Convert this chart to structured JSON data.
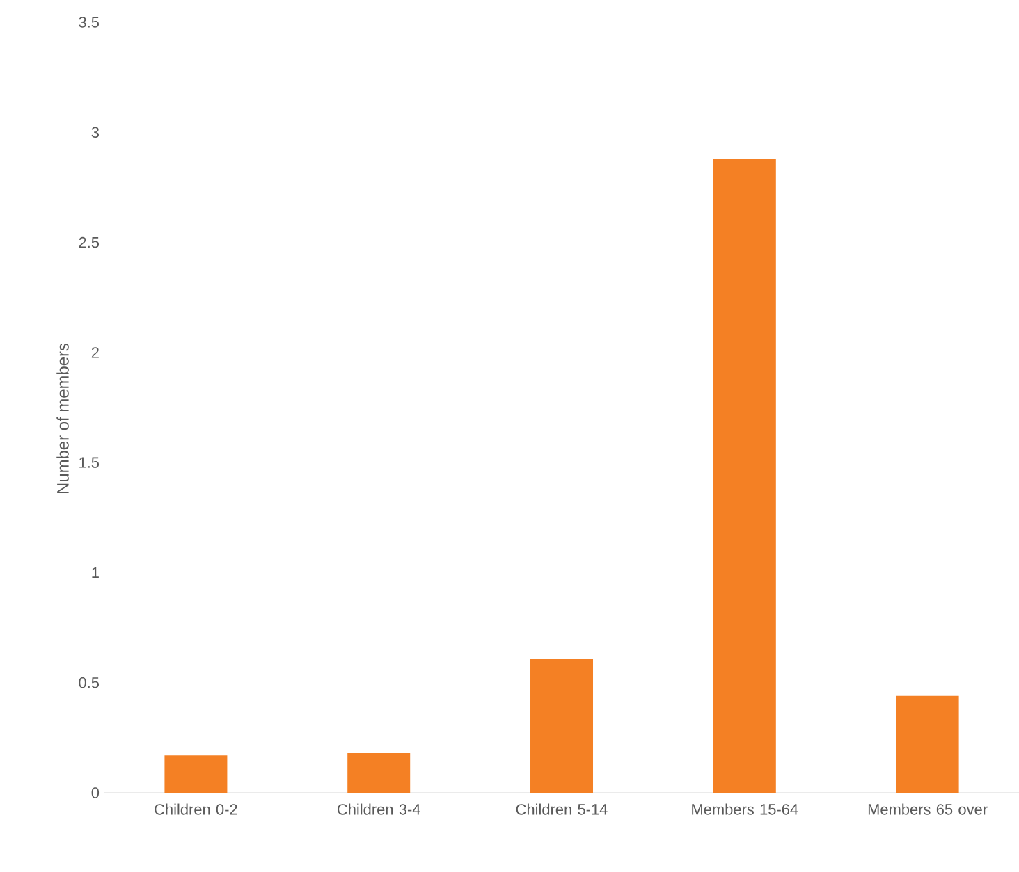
{
  "chart_data": {
    "type": "bar",
    "ylabel": "Number of members",
    "categories": [
      "Children 0-2",
      "Children 3-4",
      "Children 5-14",
      "Members 15-64",
      "Members 65 over"
    ],
    "values": [
      0.17,
      0.18,
      0.61,
      2.88,
      0.44
    ],
    "color": "#f48024",
    "ylim": [
      0,
      3.5
    ],
    "yticks": [
      0,
      0.5,
      1,
      1.5,
      2,
      2.5,
      3,
      3.5
    ]
  }
}
